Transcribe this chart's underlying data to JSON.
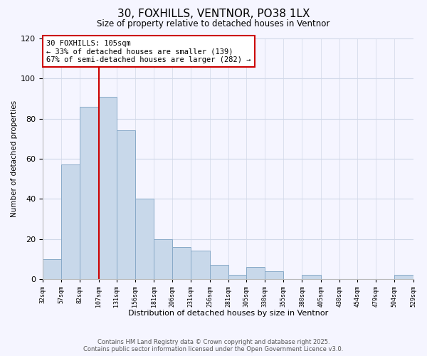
{
  "title": "30, FOXHILLS, VENTNOR, PO38 1LX",
  "subtitle": "Size of property relative to detached houses in Ventnor",
  "xlabel": "Distribution of detached houses by size in Ventnor",
  "ylabel": "Number of detached properties",
  "bar_color": "#c8d8ea",
  "bar_edge_color": "#88aac8",
  "bins": [
    32,
    57,
    82,
    107,
    131,
    156,
    181,
    206,
    231,
    256,
    281,
    305,
    330,
    355,
    380,
    405,
    430,
    454,
    479,
    504,
    529
  ],
  "bin_labels": [
    "32sqm",
    "57sqm",
    "82sqm",
    "107sqm",
    "131sqm",
    "156sqm",
    "181sqm",
    "206sqm",
    "231sqm",
    "256sqm",
    "281sqm",
    "305sqm",
    "330sqm",
    "355sqm",
    "380sqm",
    "405sqm",
    "430sqm",
    "454sqm",
    "479sqm",
    "504sqm",
    "529sqm"
  ],
  "values": [
    10,
    57,
    86,
    91,
    74,
    40,
    20,
    16,
    14,
    7,
    2,
    6,
    4,
    0,
    2,
    0,
    0,
    0,
    0,
    2
  ],
  "ylim": [
    0,
    120
  ],
  "yticks": [
    0,
    20,
    40,
    60,
    80,
    100,
    120
  ],
  "property_label": "30 FOXHILLS: 105sqm",
  "annotation_line1": "← 33% of detached houses are smaller (139)",
  "annotation_line2": "67% of semi-detached houses are larger (282) →",
  "vline_color": "#cc0000",
  "vline_x": 107,
  "footer_line1": "Contains HM Land Registry data © Crown copyright and database right 2025.",
  "footer_line2": "Contains public sector information licensed under the Open Government Licence v3.0.",
  "background_color": "#f5f5ff",
  "grid_color": "#d0d8e8"
}
